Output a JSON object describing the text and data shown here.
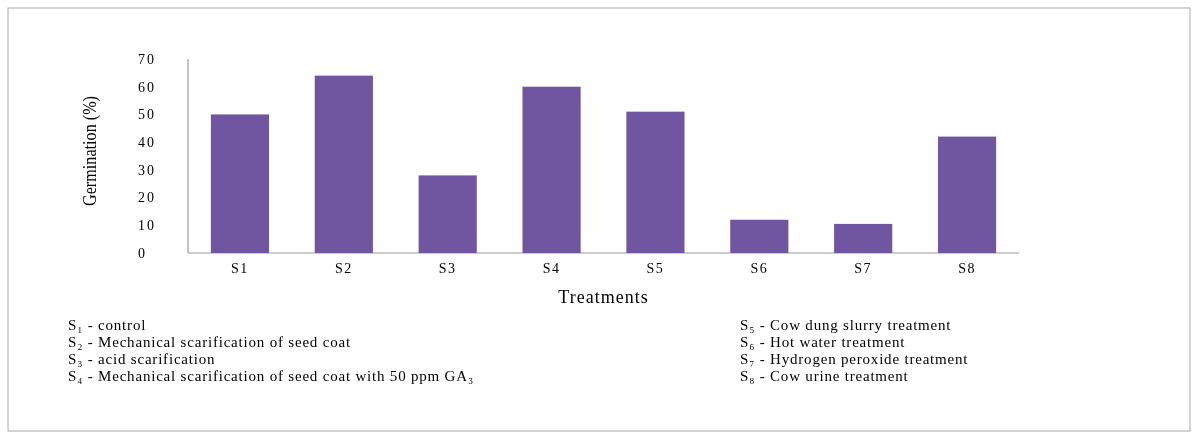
{
  "chart_data": {
    "type": "bar",
    "xlabel": "Treatments",
    "ylabel": "Germination (%)",
    "categories": [
      "S1",
      "S2",
      "S3",
      "S4",
      "S5",
      "S6",
      "S7",
      "S8"
    ],
    "values": [
      50,
      64,
      28,
      60,
      51,
      12,
      10.5,
      42
    ],
    "color": "#7055a0",
    "ylim": [
      0,
      70
    ],
    "yticks": [
      0,
      10,
      20,
      30,
      40,
      50,
      60,
      70
    ],
    "annotations": [
      "S₁ - control",
      "S₂ - Mechanical scarification of seed coat",
      "S₃ - acid scarification",
      "S₄ - Mechanical scarification of seed coat with 50 ppm GA₃",
      "S₅ - Cow dung slurry treatment",
      "S₆ - Hot water treatment",
      "S₇ - Hydrogen peroxide treatment",
      "S₈ - Cow urine treatment"
    ]
  }
}
